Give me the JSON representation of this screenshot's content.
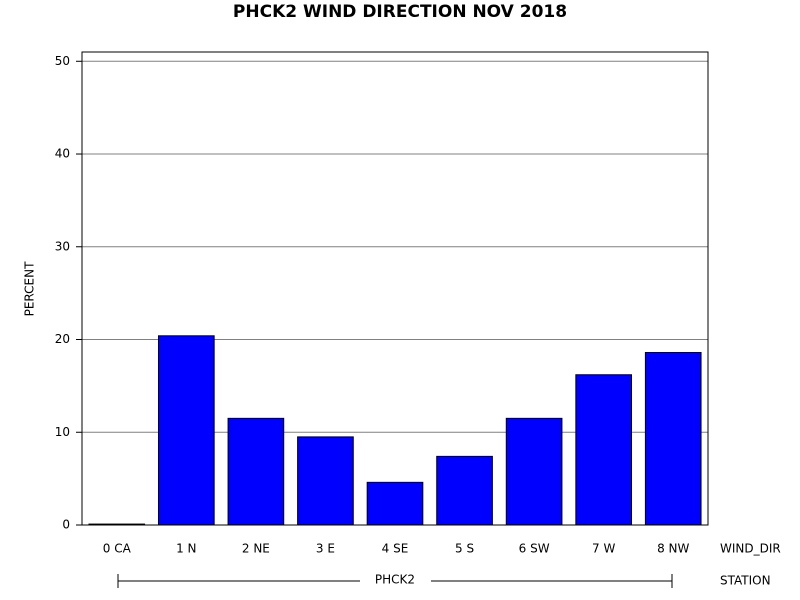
{
  "chart_data": {
    "type": "bar",
    "title": "PHCK2 WIND DIRECTION NOV 2018",
    "y_label": "PERCENT",
    "x_label": "WIND_DIR",
    "group_label": "PHCK2",
    "group_axis_label": "STATION",
    "categories": [
      "0 CA",
      "1 N",
      "2 NE",
      "3 E",
      "4 SE",
      "5 S",
      "6 SW",
      "7 W",
      "8 NW"
    ],
    "values": [
      0.1,
      20.4,
      11.5,
      9.5,
      4.6,
      7.4,
      11.5,
      16.2,
      18.6
    ],
    "color": "#0000ff",
    "ylim": [
      0,
      51
    ],
    "yticks": [
      0,
      10,
      20,
      30,
      40,
      50
    ],
    "grid": true
  }
}
